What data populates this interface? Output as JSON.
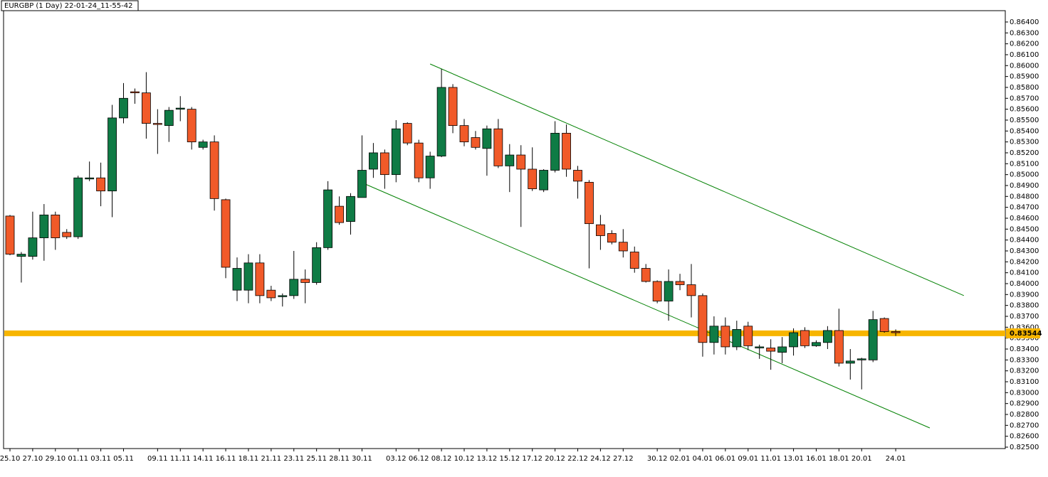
{
  "chart_data": {
    "type": "candlestick",
    "title": "EURGBP (1 Day) 22-01-24_11-55-42",
    "categories": [
      "25.10",
      null,
      "27.10",
      null,
      "29.10",
      null,
      "01.11",
      null,
      "03.11",
      null,
      "05.11",
      null,
      null,
      "09.11",
      null,
      "11.11",
      null,
      "14.11",
      null,
      "16.11",
      null,
      "18.11",
      null,
      "21.11",
      null,
      "23.11",
      null,
      "25.11",
      null,
      "28.11",
      null,
      "30.11",
      null,
      null,
      "03.12",
      null,
      "06.12",
      null,
      "08.12",
      null,
      "10.12",
      null,
      "13.12",
      null,
      "15.12",
      null,
      "17.12",
      null,
      "20.12",
      null,
      "22.12",
      null,
      "24.12",
      null,
      "27.12",
      null,
      null,
      "30.12",
      null,
      "02.01",
      null,
      "04.01",
      null,
      "06.01",
      null,
      "09.01",
      null,
      "11.01",
      null,
      "13.01",
      null,
      "16.01",
      null,
      "18.01",
      null,
      "20.01",
      null,
      null,
      "24.01"
    ],
    "open": [
      0.8462,
      0.8425,
      0.8425,
      0.8442,
      0.8463,
      0.8447,
      0.8443,
      0.8496,
      0.8497,
      0.8485,
      0.8552,
      0.8576,
      0.8575,
      0.8547,
      0.8545,
      0.856,
      0.856,
      0.8525,
      0.853,
      0.8477,
      0.8394,
      0.8394,
      0.8419,
      0.8394,
      0.8388,
      0.8389,
      0.8404,
      0.8401,
      0.8433,
      0.8471,
      0.8457,
      0.8479,
      0.8505,
      0.852,
      0.85,
      0.8547,
      0.8529,
      0.8497,
      0.8517,
      0.858,
      0.8545,
      0.8534,
      0.8524,
      0.8542,
      0.8508,
      0.8518,
      0.8505,
      0.8486,
      0.8504,
      0.8538,
      0.8504,
      0.8493,
      0.8454,
      0.8446,
      0.8438,
      0.8429,
      0.8414,
      0.8402,
      0.8384,
      0.8402,
      0.8399,
      0.8389,
      0.8346,
      0.8361,
      0.8342,
      0.8361,
      0.8341,
      0.8341,
      0.8337,
      0.8342,
      0.8357,
      0.8343,
      0.8346,
      0.8357,
      0.8327,
      0.833,
      0.833,
      0.8368,
      0.8356
    ],
    "high": [
      0.8463,
      0.8429,
      0.8466,
      0.8473,
      0.8466,
      0.845,
      0.8499,
      0.8512,
      0.8511,
      0.8564,
      0.8584,
      0.8579,
      0.8594,
      0.856,
      0.8562,
      0.8572,
      0.8562,
      0.8532,
      0.8536,
      0.8478,
      0.8424,
      0.8427,
      0.8427,
      0.8398,
      0.8391,
      0.843,
      0.8413,
      0.8438,
      0.8494,
      0.848,
      0.8483,
      0.8536,
      0.8529,
      0.8523,
      0.855,
      0.8548,
      0.8532,
      0.8521,
      0.8597,
      0.8583,
      0.8551,
      0.854,
      0.8545,
      0.8551,
      0.8528,
      0.8527,
      0.8525,
      0.8505,
      0.8549,
      0.8546,
      0.8508,
      0.8495,
      0.8463,
      0.8449,
      0.845,
      0.8434,
      0.8418,
      0.8403,
      0.8413,
      0.8409,
      0.8418,
      0.8391,
      0.837,
      0.8369,
      0.8366,
      0.8365,
      0.8344,
      0.8349,
      0.8351,
      0.8359,
      0.836,
      0.8348,
      0.8361,
      0.8377,
      0.834,
      0.8332,
      0.8375,
      0.8369,
      0.8358
    ],
    "low": [
      0.8426,
      0.8401,
      0.8422,
      0.8421,
      0.8431,
      0.8441,
      0.8441,
      0.8494,
      0.8471,
      0.8461,
      0.8547,
      0.8565,
      0.8533,
      0.8519,
      0.853,
      0.8549,
      0.8523,
      0.8523,
      0.8467,
      0.8405,
      0.8384,
      0.8382,
      0.8382,
      0.8384,
      0.8379,
      0.8386,
      0.8382,
      0.8399,
      0.8431,
      0.8454,
      0.8445,
      0.8479,
      0.8497,
      0.8487,
      0.8493,
      0.8527,
      0.8493,
      0.8487,
      0.8516,
      0.8538,
      0.8526,
      0.8523,
      0.8499,
      0.8506,
      0.8484,
      0.8452,
      0.8485,
      0.8484,
      0.8502,
      0.8498,
      0.8478,
      0.8414,
      0.8431,
      0.8436,
      0.8424,
      0.841,
      0.8401,
      0.8382,
      0.8366,
      0.8394,
      0.8369,
      0.8333,
      0.8335,
      0.8335,
      0.8339,
      0.8339,
      0.8331,
      0.8321,
      0.8327,
      0.8334,
      0.8341,
      0.8342,
      0.834,
      0.8324,
      0.8312,
      0.8303,
      0.8328,
      0.8355,
      0.8352
    ],
    "close": [
      0.8427,
      0.8427,
      0.8442,
      0.8463,
      0.8442,
      0.8443,
      0.8497,
      0.8497,
      0.8485,
      0.8552,
      0.857,
      0.8575,
      0.8547,
      0.8546,
      0.8559,
      0.8561,
      0.853,
      0.853,
      0.8478,
      0.8415,
      0.8414,
      0.8419,
      0.8389,
      0.8387,
      0.8389,
      0.8404,
      0.8401,
      0.8433,
      0.8486,
      0.8456,
      0.848,
      0.8504,
      0.852,
      0.85,
      0.8542,
      0.8529,
      0.8497,
      0.8517,
      0.858,
      0.8545,
      0.853,
      0.8525,
      0.8542,
      0.8508,
      0.8518,
      0.8505,
      0.8487,
      0.8504,
      0.8538,
      0.8505,
      0.8494,
      0.8455,
      0.8444,
      0.8438,
      0.843,
      0.8414,
      0.8402,
      0.8384,
      0.8402,
      0.8399,
      0.8389,
      0.8346,
      0.8361,
      0.8342,
      0.8358,
      0.8343,
      0.8342,
      0.8338,
      0.8342,
      0.8355,
      0.8343,
      0.8346,
      0.8357,
      0.8327,
      0.8329,
      0.8331,
      0.8367,
      0.8356,
      0.8355
    ],
    "up_color": "#0f7b45",
    "down_color": "#f15a29",
    "ylim": [
      0.82487,
      0.86504
    ],
    "yticks": [
      {
        "value": 0.825,
        "label": "0.82500"
      },
      {
        "value": 0.826,
        "label": "0.82600"
      },
      {
        "value": 0.827,
        "label": "0.82700"
      },
      {
        "value": 0.828,
        "label": "0.82800"
      },
      {
        "value": 0.829,
        "label": "0.82900"
      },
      {
        "value": 0.83,
        "label": "0.83000"
      },
      {
        "value": 0.831,
        "label": "0.83100"
      },
      {
        "value": 0.832,
        "label": "0.83200"
      },
      {
        "value": 0.833,
        "label": "0.83300"
      },
      {
        "value": 0.834,
        "label": "0.83400"
      },
      {
        "value": 0.835,
        "label": "0.83500"
      },
      {
        "value": 0.836,
        "label": "0.83600"
      },
      {
        "value": 0.837,
        "label": "0.83700"
      },
      {
        "value": 0.838,
        "label": "0.83800"
      },
      {
        "value": 0.839,
        "label": "0.83900"
      },
      {
        "value": 0.84,
        "label": "0.84000"
      },
      {
        "value": 0.841,
        "label": "0.84100"
      },
      {
        "value": 0.842,
        "label": "0.84200"
      },
      {
        "value": 0.843,
        "label": "0.84300"
      },
      {
        "value": 0.844,
        "label": "0.84400"
      },
      {
        "value": 0.845,
        "label": "0.84500"
      },
      {
        "value": 0.846,
        "label": "0.84600"
      },
      {
        "value": 0.847,
        "label": "0.84700"
      },
      {
        "value": 0.848,
        "label": "0.84800"
      },
      {
        "value": 0.849,
        "label": "0.84900"
      },
      {
        "value": 0.85,
        "label": "0.85000"
      },
      {
        "value": 0.851,
        "label": "0.85100"
      },
      {
        "value": 0.852,
        "label": "0.85200"
      },
      {
        "value": 0.853,
        "label": "0.85300"
      },
      {
        "value": 0.854,
        "label": "0.85400"
      },
      {
        "value": 0.855,
        "label": "0.85500"
      },
      {
        "value": 0.856,
        "label": "0.85600"
      },
      {
        "value": 0.857,
        "label": "0.85700"
      },
      {
        "value": 0.858,
        "label": "0.85800"
      },
      {
        "value": 0.859,
        "label": "0.85900"
      },
      {
        "value": 0.86,
        "label": "0.86000"
      },
      {
        "value": 0.861,
        "label": "0.86100"
      },
      {
        "value": 0.862,
        "label": "0.86200"
      },
      {
        "value": 0.863,
        "label": "0.86300"
      },
      {
        "value": 0.864,
        "label": "0.86400"
      }
    ],
    "hline": {
      "value": 0.83544,
      "label": "0.83544",
      "color": "#f7b500"
    },
    "trendlines": [
      {
        "x": [
          37,
          84
        ],
        "y": [
          0.86015,
          0.8389
        ],
        "color": "#008000"
      },
      {
        "x": [
          31,
          81
        ],
        "y": [
          0.84926,
          0.82676
        ],
        "color": "#008000"
      }
    ]
  }
}
